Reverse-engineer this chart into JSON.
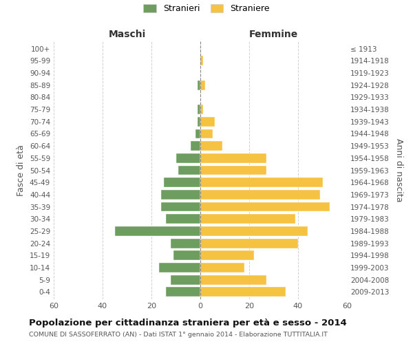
{
  "age_groups_bottom_to_top": [
    "0-4",
    "5-9",
    "10-14",
    "15-19",
    "20-24",
    "25-29",
    "30-34",
    "35-39",
    "40-44",
    "45-49",
    "50-54",
    "55-59",
    "60-64",
    "65-69",
    "70-74",
    "75-79",
    "80-84",
    "85-89",
    "90-94",
    "95-99",
    "100+"
  ],
  "birth_years_bottom_to_top": [
    "2009-2013",
    "2004-2008",
    "1999-2003",
    "1994-1998",
    "1989-1993",
    "1984-1988",
    "1979-1983",
    "1974-1978",
    "1969-1973",
    "1964-1968",
    "1959-1963",
    "1954-1958",
    "1949-1953",
    "1944-1948",
    "1939-1943",
    "1934-1938",
    "1929-1933",
    "1924-1928",
    "1919-1923",
    "1914-1918",
    "≤ 1913"
  ],
  "males_bottom_to_top": [
    14,
    12,
    17,
    11,
    12,
    35,
    14,
    16,
    16,
    15,
    9,
    10,
    4,
    2,
    1,
    1,
    0,
    1,
    0,
    0,
    0
  ],
  "females_bottom_to_top": [
    35,
    27,
    18,
    22,
    40,
    44,
    39,
    53,
    49,
    50,
    27,
    27,
    9,
    5,
    6,
    1,
    0,
    2,
    0,
    1,
    0
  ],
  "male_color": "#6e9e5f",
  "female_color": "#f5c242",
  "grid_color": "#cccccc",
  "center_line_color": "#888888",
  "title": "Popolazione per cittadinanza straniera per età e sesso - 2014",
  "subtitle": "COMUNE DI SASSOFERRATO (AN) - Dati ISTAT 1° gennaio 2014 - Elaborazione TUTTITALIA.IT",
  "xlabel_left": "Maschi",
  "xlabel_right": "Femmine",
  "ylabel_left": "Fasce di età",
  "ylabel_right": "Anni di nascita",
  "xlim": 60,
  "legend_labels": [
    "Stranieri",
    "Straniere"
  ],
  "xticks": [
    -60,
    -40,
    -20,
    0,
    20,
    40,
    60
  ],
  "xticklabels": [
    "60",
    "40",
    "20",
    "0",
    "20",
    "40",
    "60"
  ]
}
